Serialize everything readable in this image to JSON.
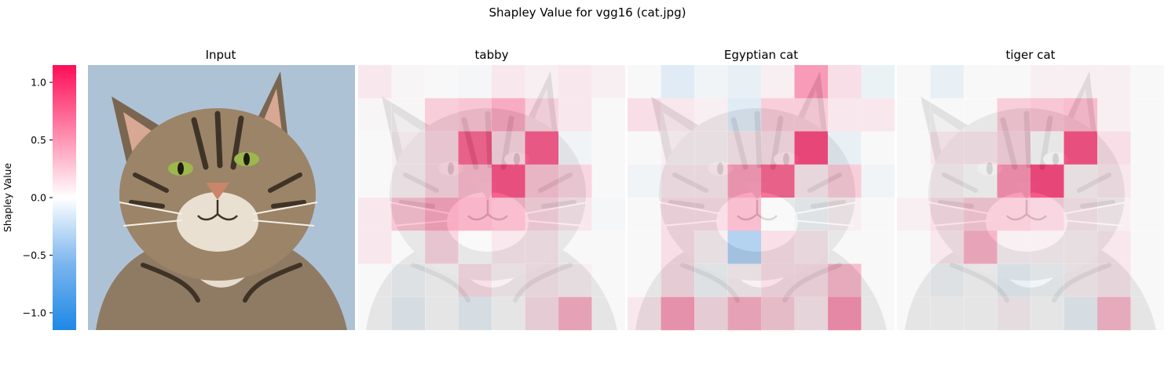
{
  "figure": {
    "suptitle": "Shapley Value for vgg16 (cat.jpg)"
  },
  "colorbar": {
    "label": "Shapley Value",
    "vmin": -1.15,
    "vmax": 1.15,
    "ticks": [
      1.0,
      0.5,
      0.0,
      -0.5,
      -1.0
    ],
    "tick_labels": [
      "1.0",
      "0.5",
      "0.0",
      "−0.5",
      "−1.0"
    ],
    "colors": {
      "negative": "#1e88e5",
      "zero": "#ffffff",
      "positive": "#ff0d57"
    }
  },
  "panels": {
    "input_title": "Input",
    "heatmap_titles": [
      "tabby",
      "Egyptian cat",
      "tiger cat"
    ]
  },
  "chart_data": {
    "type": "heatmap",
    "grid": {
      "rows": 8,
      "cols": 8
    },
    "color_range": [
      -1.15,
      1.15
    ],
    "series": [
      {
        "name": "tabby",
        "values": [
          [
            0.1,
            0.02,
            0.0,
            -0.02,
            0.1,
            0.05,
            0.1,
            0.05
          ],
          [
            0.02,
            0.02,
            0.25,
            0.3,
            0.45,
            0.2,
            0.1,
            0.0
          ],
          [
            0.0,
            0.05,
            0.2,
            0.8,
            0.2,
            0.85,
            -0.05,
            0.0
          ],
          [
            0.0,
            0.05,
            0.2,
            0.35,
            0.9,
            0.3,
            0.2,
            0.0
          ],
          [
            0.1,
            0.3,
            0.45,
            0.4,
            0.35,
            0.2,
            0.1,
            -0.02
          ],
          [
            0.1,
            0.0,
            0.2,
            0.0,
            0.1,
            0.1,
            0.0,
            0.0
          ],
          [
            0.0,
            -0.05,
            0.0,
            0.15,
            0.05,
            0.1,
            0.05,
            0.0
          ],
          [
            0.0,
            -0.1,
            0.0,
            -0.1,
            0.0,
            0.15,
            0.4,
            0.0
          ]
        ]
      },
      {
        "name": "Egyptian cat",
        "values": [
          [
            0.0,
            -0.15,
            -0.05,
            -0.1,
            0.05,
            0.55,
            0.15,
            -0.08
          ],
          [
            0.15,
            0.1,
            0.05,
            -0.15,
            0.25,
            0.25,
            0.1,
            0.1
          ],
          [
            0.0,
            0.05,
            0.05,
            0.1,
            0.15,
            0.95,
            -0.1,
            0.0
          ],
          [
            -0.05,
            0.1,
            0.1,
            0.5,
            0.8,
            0.1,
            0.25,
            -0.05
          ],
          [
            0.0,
            0.15,
            0.15,
            0.35,
            0.0,
            -0.05,
            0.05,
            0.0
          ],
          [
            0.0,
            0.15,
            0.05,
            -0.45,
            0.15,
            0.1,
            0.0,
            0.0
          ],
          [
            0.0,
            0.15,
            -0.05,
            0.05,
            0.15,
            0.15,
            0.35,
            0.0
          ],
          [
            0.1,
            0.5,
            0.15,
            0.4,
            0.25,
            0.1,
            0.55,
            0.0
          ]
        ]
      },
      {
        "name": "tiger cat",
        "values": [
          [
            0.0,
            -0.1,
            0.0,
            0.0,
            0.05,
            0.05,
            0.05,
            0.0
          ],
          [
            0.0,
            0.0,
            0.0,
            0.25,
            0.3,
            0.35,
            0.05,
            0.0
          ],
          [
            0.0,
            0.1,
            0.1,
            0.2,
            0.0,
            0.9,
            0.15,
            0.0
          ],
          [
            0.0,
            0.05,
            0.0,
            0.55,
            0.95,
            0.05,
            0.1,
            0.0
          ],
          [
            0.05,
            0.15,
            0.25,
            0.25,
            0.2,
            0.1,
            0.05,
            0.0
          ],
          [
            0.0,
            0.1,
            0.4,
            0.05,
            0.05,
            0.05,
            0.1,
            0.0
          ],
          [
            0.0,
            -0.05,
            0.0,
            -0.1,
            -0.05,
            0.05,
            0.1,
            0.0
          ],
          [
            0.0,
            0.0,
            0.0,
            0.05,
            0.0,
            -0.1,
            0.35,
            0.0
          ]
        ]
      }
    ]
  }
}
